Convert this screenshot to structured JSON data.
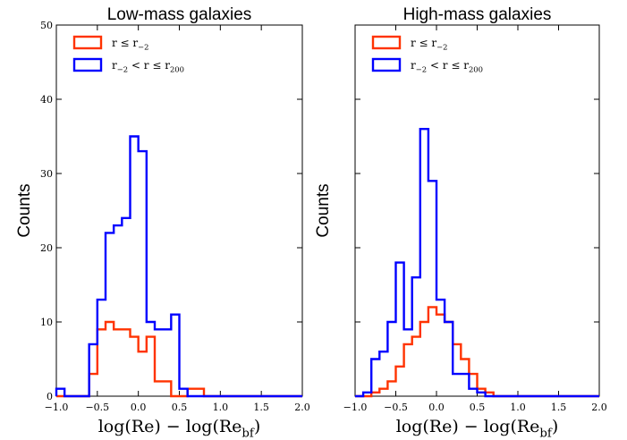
{
  "chart_data": [
    {
      "type": "histogram",
      "title": "Low-mass galaxies",
      "ylabel": "Counts",
      "xlabel": "log(Re) − log(Re_bf)",
      "xlim": [
        -1.0,
        2.0
      ],
      "ylim": [
        0,
        50
      ],
      "x_ticks": [
        "−1.0",
        "−0.5",
        "0.0",
        "0.5",
        "1.0",
        "1.5",
        "2.0"
      ],
      "y_ticks": [
        "0",
        "10",
        "20",
        "30",
        "40",
        "50"
      ],
      "bin_edges": [
        -1.0,
        -0.9,
        -0.8,
        -0.7,
        -0.6,
        -0.5,
        -0.4,
        -0.3,
        -0.2,
        -0.1,
        0.0,
        0.1,
        0.2,
        0.3,
        0.4,
        0.5,
        0.6,
        0.7,
        0.8,
        0.9,
        1.0,
        1.1,
        1.2,
        1.3,
        1.4,
        1.5,
        1.6,
        1.7,
        1.8,
        1.9,
        2.0
      ],
      "legend_position": "top-left",
      "series": [
        {
          "legend_label": "r ≤ r₋₂",
          "color": "#ff3300",
          "values": [
            0,
            0,
            0,
            0,
            3,
            9,
            10,
            9,
            9,
            8,
            6,
            8,
            2,
            2,
            0,
            0,
            1,
            1,
            0,
            0,
            0,
            0,
            0,
            0,
            0,
            0,
            0,
            0,
            0,
            0
          ]
        },
        {
          "legend_label": "r₋₂ < r ≤ r₂₀₀",
          "color": "#0000ff",
          "values": [
            1,
            0,
            0,
            0,
            7,
            13,
            22,
            23,
            24,
            35,
            33,
            10,
            9,
            9,
            11,
            1,
            0,
            0,
            0,
            0,
            0,
            0,
            0,
            0,
            0,
            0,
            0,
            0,
            0,
            0
          ]
        }
      ]
    },
    {
      "type": "histogram",
      "title": "High-mass galaxies",
      "ylabel": "Counts",
      "xlabel": "log(Re) − log(Re_bf)",
      "xlim": [
        -1.0,
        2.0
      ],
      "ylim": [
        0,
        50
      ],
      "x_ticks": [
        "−1.0",
        "−0.5",
        "0.0",
        "0.5",
        "1.0",
        "1.5",
        "2.0"
      ],
      "y_ticks": [],
      "bin_edges": [
        -1.0,
        -0.9,
        -0.8,
        -0.7,
        -0.6,
        -0.5,
        -0.4,
        -0.3,
        -0.2,
        -0.1,
        0.0,
        0.1,
        0.2,
        0.3,
        0.4,
        0.5,
        0.6,
        0.7,
        0.8,
        0.9,
        1.0,
        1.1,
        1.2,
        1.3,
        1.4,
        1.5,
        1.6,
        1.7,
        1.8,
        1.9,
        2.0
      ],
      "legend_position": "top-left",
      "series": [
        {
          "legend_label": "r ≤ r₋₂",
          "color": "#ff3300",
          "values": [
            0,
            0,
            0.5,
            1,
            2,
            4,
            7,
            8,
            10,
            12,
            11,
            10,
            7,
            5,
            3,
            1,
            0.5,
            0,
            0,
            0,
            0,
            0,
            0,
            0,
            0,
            0,
            0,
            0,
            0,
            0
          ]
        },
        {
          "legend_label": "r₋₂ < r ≤ r₂₀₀",
          "color": "#0000ff",
          "values": [
            0,
            0.5,
            5,
            6,
            10,
            18,
            9,
            16,
            36,
            29,
            13,
            10,
            3,
            3,
            1,
            0.5,
            0,
            0,
            0,
            0,
            0,
            0,
            0,
            0,
            0,
            0,
            0,
            0,
            0,
            0
          ]
        }
      ]
    }
  ]
}
